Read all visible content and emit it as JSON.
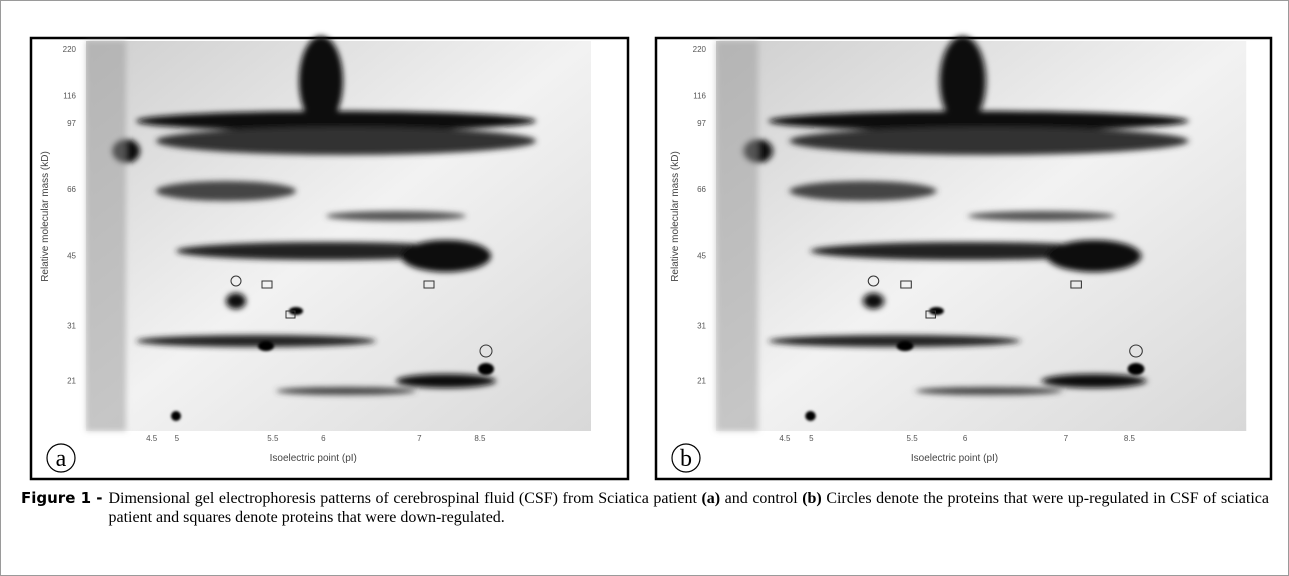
{
  "panels": [
    {
      "label": "a",
      "x_axis_label": "Isoelectric point (pI)",
      "y_axis_label": "Relative molecular mass (kD)",
      "x_ticks": [
        "4.5",
        "5",
        "5.5",
        "6",
        "7",
        "8.5"
      ],
      "y_ticks": [
        "220",
        "116",
        "97",
        "66",
        "45",
        "31",
        "21"
      ]
    },
    {
      "label": "b",
      "x_axis_label": "Isoelectric point (pI)",
      "y_axis_label": "Relative molecular mass (kD)",
      "x_ticks": [
        "4.5",
        "5",
        "5.5",
        "6",
        "7",
        "8.5"
      ],
      "y_ticks": [
        "220",
        "116",
        "97",
        "66",
        "45",
        "31",
        "21"
      ]
    }
  ],
  "caption": {
    "label": "Figure 1 -",
    "parts": [
      "Dimensional gel electrophoresis patterns of cerebrospinal fluid (CSF) from Sciatica patient ",
      "(a)",
      " and control ",
      "(b)",
      " Circles denote the proteins that were up-regulated in CSF of sciatica patient and squares denote proteins that were down-regulated."
    ]
  }
}
